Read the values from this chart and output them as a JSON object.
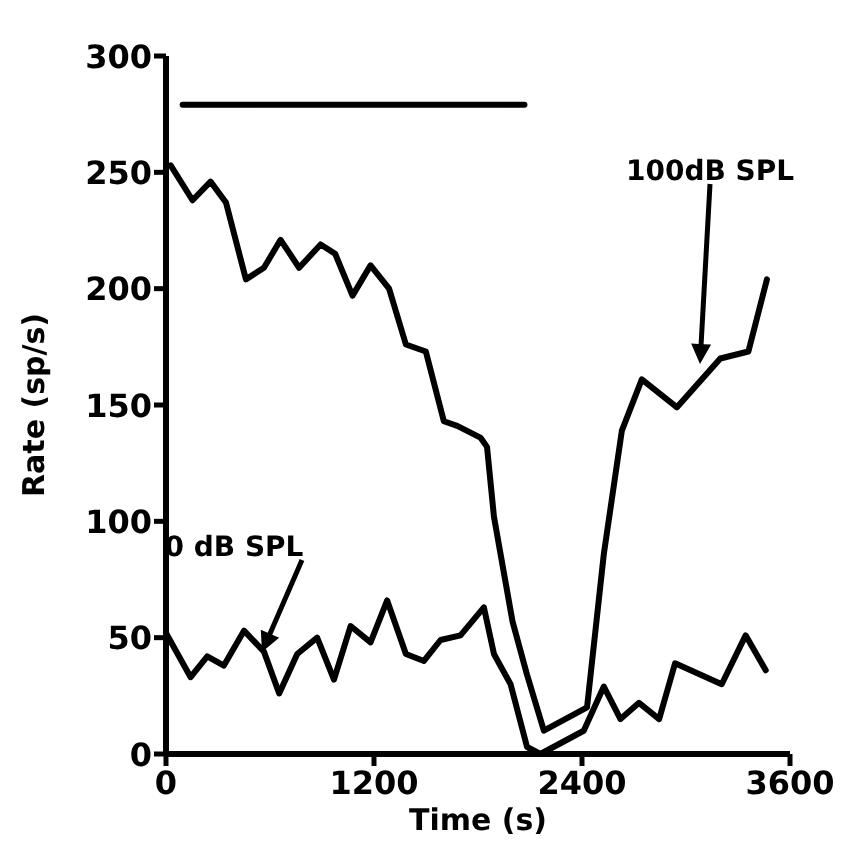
{
  "chart_data": {
    "type": "line",
    "xlabel": "Time (s)",
    "ylabel": "Rate (sp/s)",
    "xlim": [
      0,
      3600
    ],
    "xticks": [
      0,
      1200,
      2400,
      3600
    ],
    "ylim": [
      0,
      300
    ],
    "yticks": [
      0,
      50,
      100,
      150,
      200,
      250,
      300
    ],
    "grid": false,
    "marker": "none",
    "line_style": "solid",
    "series": [
      {
        "color": "#000000",
        "x": [
          27,
          153,
          257,
          346,
          461,
          565,
          661,
          768,
          892,
          976,
          1076,
          1180,
          1287,
          1384,
          1499,
          1603,
          1680,
          1814,
          1852,
          1892,
          1999,
          2083,
          2180,
          2429,
          2526,
          2630,
          2745,
          2948,
          3198,
          3360,
          3467
        ],
        "values": [
          253,
          238,
          246,
          237,
          204,
          209,
          221,
          209,
          219,
          215,
          197,
          210,
          200,
          176,
          173,
          143,
          141,
          136,
          132,
          102,
          57,
          34,
          10,
          20,
          86,
          139,
          161,
          149,
          170,
          173,
          204
        ]
      },
      {
        "color": "#000000",
        "x": [
          0,
          142,
          238,
          334,
          450,
          565,
          653,
          757,
          872,
          969,
          1065,
          1180,
          1276,
          1384,
          1488,
          1584,
          1699,
          1834,
          1892,
          1988,
          2083,
          2160,
          2410,
          2526,
          2622,
          2729,
          2845,
          2937,
          3206,
          3344,
          3460
        ],
        "values": [
          52,
          33,
          42,
          38,
          53,
          44,
          26,
          43,
          50,
          32,
          55,
          48,
          66,
          43,
          40,
          49,
          51,
          63,
          43,
          30,
          3,
          0,
          10,
          29,
          15,
          22,
          15,
          39,
          30,
          51,
          36
        ]
      },
      {
        "color": "#000000",
        "x": [
          96,
          730,
          2068
        ],
        "values": [
          279,
          279,
          279
        ]
      }
    ],
    "annotations": [
      "100dB SPL",
      "0 dB SPL"
    ]
  }
}
